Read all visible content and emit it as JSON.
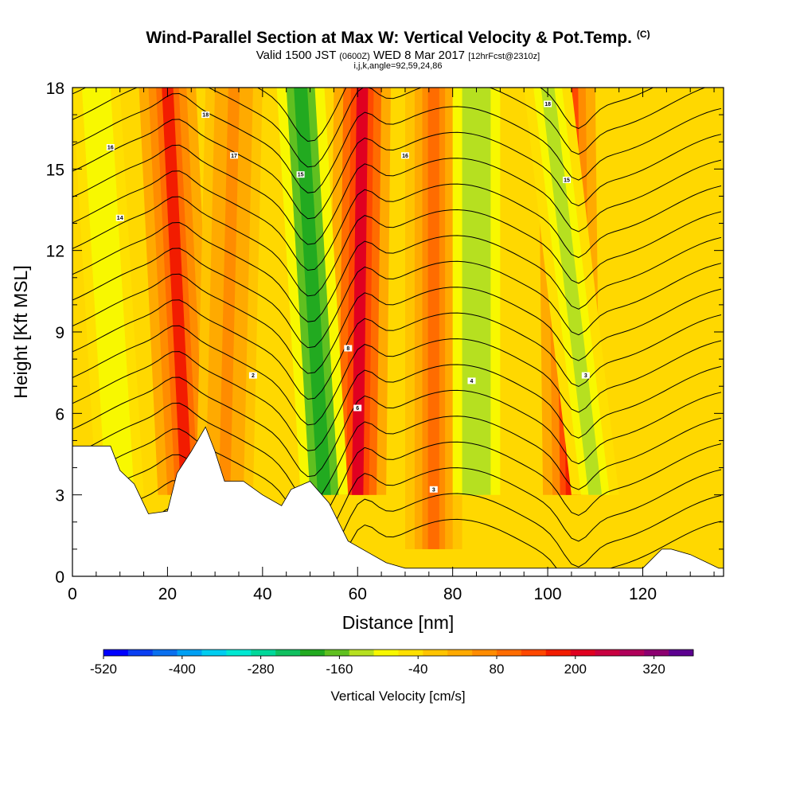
{
  "title": {
    "main": "Wind-Parallel Section at Max W: Vertical Velocity & Pot.Temp.",
    "mark": "(C)",
    "sub_valid": "Valid 1500 JST",
    "sub_utc": "(0600Z)",
    "sub_date": "WED 8 Mar 2017",
    "sub_fcst": "[12hrFcst@2310z]",
    "grid_info": "i,j,k,angle=92,59,24,86"
  },
  "chart_data": {
    "type": "heatmap",
    "xlabel": "Distance [nm]",
    "ylabel": "Height [Kft MSL]",
    "xlim": [
      0,
      137
    ],
    "ylim": [
      0,
      18
    ],
    "x_ticks": [
      0,
      20,
      40,
      60,
      80,
      100,
      120
    ],
    "y_ticks": [
      0,
      3,
      6,
      9,
      12,
      15,
      18
    ],
    "colorbar": {
      "label": "Vertical Velocity [cm/s]",
      "min": -520,
      "max": 380,
      "step": 40,
      "tick_values": [
        -520,
        -400,
        -280,
        -160,
        -40,
        80,
        200,
        320
      ],
      "colors": [
        "#0000ff",
        "#0a3ff2",
        "#0a70ef",
        "#00a0f4",
        "#00cdf0",
        "#00e8d2",
        "#00d89a",
        "#10c060",
        "#22aa20",
        "#60c020",
        "#b6e020",
        "#f8f800",
        "#ffe000",
        "#ffc400",
        "#ffaa00",
        "#ff8c00",
        "#ff6c00",
        "#ff4800",
        "#f21c00",
        "#e00020",
        "#c80040",
        "#b0005a",
        "#8c0070",
        "#5c0090"
      ]
    },
    "updraft_bands": [
      {
        "x_low": 24,
        "x_high": 20,
        "w_cm_s": 200
      },
      {
        "x_low": 32,
        "x_high": 34,
        "w_cm_s": 100
      },
      {
        "x_low": 60,
        "x_high": 61,
        "w_cm_s": 240
      },
      {
        "x_low": 105,
        "x_high": 104,
        "w_cm_s": 220
      },
      {
        "x_low": 76,
        "x_high": 76,
        "w_cm_s": 120
      }
    ],
    "downdraft_bands": [
      {
        "x_low": 53,
        "x_high": 48,
        "w_cm_s": -200
      },
      {
        "x_low": 85,
        "x_high": 85,
        "w_cm_s": -120
      },
      {
        "x_low": 110,
        "x_high": 100,
        "w_cm_s": -100
      },
      {
        "x_low": 10,
        "x_high": 5,
        "w_cm_s": -80
      }
    ],
    "terrain": [
      [
        0,
        4.8
      ],
      [
        8,
        4.8
      ],
      [
        10,
        3.9
      ],
      [
        13,
        3.4
      ],
      [
        16,
        2.3
      ],
      [
        20,
        2.4
      ],
      [
        22,
        3.8
      ],
      [
        25,
        4.6
      ],
      [
        28,
        5.5
      ],
      [
        30,
        4.6
      ],
      [
        32,
        3.5
      ],
      [
        36,
        3.5
      ],
      [
        40,
        3.0
      ],
      [
        44,
        2.6
      ],
      [
        46,
        3.2
      ],
      [
        50,
        3.5
      ],
      [
        54,
        2.7
      ],
      [
        58,
        1.3
      ],
      [
        62,
        0.9
      ],
      [
        66,
        0.5
      ],
      [
        70,
        0.3
      ],
      [
        76,
        0.3
      ],
      [
        120,
        0.3
      ],
      [
        124,
        1.0
      ],
      [
        126,
        1.0
      ],
      [
        130,
        0.8
      ],
      [
        136,
        0.3
      ]
    ],
    "theta_contour_labels": [
      {
        "x": 38,
        "y": 7.4,
        "text": "2"
      },
      {
        "x": 58,
        "y": 8.4,
        "text": "8"
      },
      {
        "x": 60,
        "y": 6.2,
        "text": "6"
      },
      {
        "x": 76,
        "y": 3.2,
        "text": "3"
      },
      {
        "x": 84,
        "y": 7.2,
        "text": "4"
      },
      {
        "x": 108,
        "y": 7.4,
        "text": "3"
      },
      {
        "x": 8,
        "y": 15.8,
        "text": "16"
      },
      {
        "x": 10,
        "y": 13.2,
        "text": "14"
      },
      {
        "x": 28,
        "y": 17.0,
        "text": "18"
      },
      {
        "x": 34,
        "y": 15.5,
        "text": "17"
      },
      {
        "x": 48,
        "y": 14.8,
        "text": "15"
      },
      {
        "x": 70,
        "y": 15.5,
        "text": "16"
      },
      {
        "x": 100,
        "y": 17.4,
        "text": "18"
      },
      {
        "x": 104,
        "y": 14.6,
        "text": "15"
      }
    ]
  }
}
